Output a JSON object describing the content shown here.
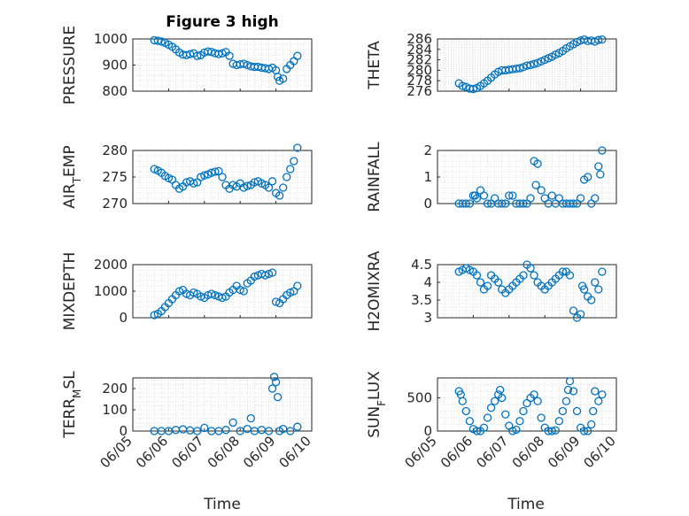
{
  "figure": {
    "title": "Figure 3 high",
    "xlabel": "Time"
  },
  "chart_data": [
    {
      "type": "scatter",
      "title": "Figure 3 high",
      "ylabel": "PRESSURE",
      "ylim": [
        800,
        1000
      ],
      "yticks": [
        800,
        900,
        1000
      ],
      "xlim": [
        0,
        5
      ],
      "grid": true,
      "x": [
        0.6,
        0.7,
        0.8,
        0.9,
        1.0,
        1.1,
        1.2,
        1.3,
        1.4,
        1.5,
        1.6,
        1.7,
        1.8,
        1.9,
        2.0,
        2.1,
        2.2,
        2.3,
        2.4,
        2.5,
        2.6,
        2.7,
        2.8,
        2.9,
        3.0,
        3.1,
        3.2,
        3.3,
        3.4,
        3.5,
        3.6,
        3.7,
        3.8,
        3.9,
        4.0,
        4.05,
        4.1,
        4.2,
        4.3,
        4.4,
        4.5,
        4.6
      ],
      "y": [
        995,
        993,
        990,
        985,
        978,
        970,
        960,
        948,
        940,
        938,
        942,
        945,
        935,
        938,
        948,
        952,
        950,
        945,
        942,
        945,
        950,
        935,
        905,
        900,
        903,
        905,
        900,
        895,
        893,
        893,
        890,
        888,
        885,
        890,
        880,
        855,
        840,
        848,
        885,
        900,
        915,
        935
      ]
    },
    {
      "type": "scatter",
      "ylabel": "THETA",
      "ylim": [
        276,
        286
      ],
      "yticks": [
        276,
        278,
        280,
        282,
        284,
        286
      ],
      "xlim": [
        0,
        5
      ],
      "grid": true,
      "x": [
        0.6,
        0.7,
        0.8,
        0.9,
        1.0,
        1.1,
        1.2,
        1.3,
        1.4,
        1.5,
        1.6,
        1.7,
        1.8,
        1.9,
        2.0,
        2.1,
        2.2,
        2.3,
        2.4,
        2.5,
        2.6,
        2.7,
        2.8,
        2.9,
        3.0,
        3.1,
        3.2,
        3.3,
        3.4,
        3.5,
        3.6,
        3.7,
        3.8,
        3.9,
        4.0,
        4.1,
        4.2,
        4.3,
        4.4,
        4.5,
        4.6
      ],
      "y": [
        277.5,
        277.0,
        276.8,
        276.5,
        276.4,
        276.6,
        277.0,
        277.5,
        278.0,
        278.6,
        279.2,
        279.7,
        280.0,
        280.0,
        280.1,
        280.2,
        280.3,
        280.4,
        280.6,
        280.9,
        281.0,
        281.2,
        281.4,
        281.7,
        282.0,
        282.3,
        282.6,
        283.0,
        283.3,
        283.7,
        284.2,
        284.6,
        285.0,
        285.4,
        285.7,
        285.9,
        285.6,
        285.7,
        285.5,
        285.8,
        285.9
      ]
    },
    {
      "type": "scatter",
      "ylabel": "AIR_TEMP",
      "ylim": [
        270,
        280
      ],
      "yticks": [
        270,
        275,
        280
      ],
      "xlim": [
        0,
        5
      ],
      "grid": true,
      "x": [
        0.6,
        0.7,
        0.8,
        0.9,
        1.0,
        1.1,
        1.2,
        1.3,
        1.4,
        1.5,
        1.6,
        1.7,
        1.8,
        1.9,
        2.0,
        2.1,
        2.2,
        2.3,
        2.4,
        2.5,
        2.6,
        2.7,
        2.8,
        2.9,
        3.0,
        3.1,
        3.2,
        3.3,
        3.4,
        3.5,
        3.6,
        3.7,
        3.8,
        3.9,
        4.0,
        4.1,
        4.2,
        4.3,
        4.4,
        4.5,
        4.6
      ],
      "y": [
        276.5,
        276.2,
        275.8,
        275.2,
        274.8,
        274.5,
        273.5,
        272.8,
        273.2,
        274.0,
        274.2,
        273.8,
        274.0,
        275.0,
        275.3,
        275.5,
        275.8,
        276.0,
        276.1,
        275.0,
        273.5,
        272.8,
        273.5,
        273.2,
        273.8,
        273.0,
        273.3,
        273.5,
        274.0,
        274.2,
        273.8,
        273.5,
        273.0,
        274.2,
        272.0,
        271.5,
        273.0,
        275.0,
        276.5,
        278.0,
        280.5
      ]
    },
    {
      "type": "scatter",
      "ylabel": "RAINFALL",
      "ylim": [
        0,
        2
      ],
      "yticks": [
        0,
        1,
        2
      ],
      "xlim": [
        0,
        5
      ],
      "grid": true,
      "x": [
        0.6,
        0.7,
        0.8,
        0.9,
        1.0,
        1.05,
        1.1,
        1.2,
        1.3,
        1.4,
        1.5,
        1.6,
        1.7,
        1.8,
        1.9,
        2.0,
        2.1,
        2.2,
        2.3,
        2.4,
        2.5,
        2.6,
        2.7,
        2.75,
        2.8,
        2.9,
        3.0,
        3.1,
        3.2,
        3.3,
        3.4,
        3.5,
        3.6,
        3.7,
        3.8,
        3.9,
        4.0,
        4.1,
        4.2,
        4.3,
        4.4,
        4.5,
        4.55,
        4.6
      ],
      "y": [
        0,
        0,
        0,
        0,
        0.3,
        0.3,
        0.2,
        0.5,
        0.3,
        0,
        0,
        0.2,
        0,
        0,
        0,
        0.3,
        0.3,
        0,
        0,
        0,
        0,
        0.2,
        1.6,
        0.7,
        1.5,
        0.5,
        0.2,
        0,
        0.3,
        0,
        0.2,
        0,
        0,
        0,
        0,
        0,
        0.2,
        0.9,
        1.0,
        0,
        0.2,
        1.4,
        1.1,
        2.0
      ]
    },
    {
      "type": "scatter",
      "ylabel": "MIXDEPTH",
      "ylim": [
        0,
        2000
      ],
      "yticks": [
        0,
        1000,
        2000
      ],
      "xlim": [
        0,
        5
      ],
      "grid": true,
      "x": [
        0.6,
        0.7,
        0.8,
        0.9,
        1.0,
        1.1,
        1.2,
        1.3,
        1.4,
        1.5,
        1.6,
        1.7,
        1.8,
        1.9,
        2.0,
        2.1,
        2.2,
        2.3,
        2.4,
        2.5,
        2.6,
        2.7,
        2.8,
        2.9,
        3.0,
        3.1,
        3.2,
        3.3,
        3.4,
        3.5,
        3.6,
        3.7,
        3.8,
        3.9,
        4.0,
        4.1,
        4.2,
        4.3,
        4.4,
        4.5,
        4.6
      ],
      "y": [
        100,
        150,
        250,
        400,
        550,
        700,
        850,
        1000,
        1050,
        900,
        850,
        950,
        900,
        800,
        750,
        850,
        900,
        850,
        800,
        750,
        800,
        950,
        1050,
        1200,
        1050,
        1000,
        1300,
        1400,
        1550,
        1600,
        1650,
        1600,
        1650,
        1700,
        600,
        550,
        700,
        850,
        950,
        1000,
        1200
      ]
    },
    {
      "type": "scatter",
      "ylabel": "H2OMIXRA",
      "ylim": [
        3,
        4.5
      ],
      "yticks": [
        3,
        3.5,
        4,
        4.5
      ],
      "xlim": [
        0,
        5
      ],
      "grid": true,
      "x": [
        0.6,
        0.7,
        0.8,
        0.9,
        1.0,
        1.1,
        1.2,
        1.3,
        1.4,
        1.5,
        1.6,
        1.7,
        1.8,
        1.9,
        2.0,
        2.1,
        2.2,
        2.3,
        2.4,
        2.5,
        2.6,
        2.7,
        2.8,
        2.9,
        3.0,
        3.1,
        3.2,
        3.3,
        3.4,
        3.5,
        3.6,
        3.7,
        3.8,
        3.9,
        4.0,
        4.05,
        4.1,
        4.2,
        4.3,
        4.4,
        4.5,
        4.6
      ],
      "y": [
        4.3,
        4.35,
        4.4,
        4.35,
        4.3,
        4.2,
        4.0,
        3.8,
        3.9,
        4.2,
        4.1,
        4.0,
        3.8,
        3.7,
        3.8,
        3.9,
        4.0,
        4.1,
        4.2,
        4.5,
        4.4,
        4.2,
        4.0,
        3.9,
        3.8,
        3.9,
        4.0,
        4.1,
        4.2,
        4.3,
        4.3,
        4.2,
        3.2,
        3.0,
        3.1,
        3.9,
        3.8,
        3.6,
        3.5,
        4.0,
        3.8,
        4.3
      ]
    },
    {
      "type": "scatter",
      "ylabel": "TERR_MSL",
      "ylim": [
        0,
        250
      ],
      "yticks": [
        0,
        100,
        200
      ],
      "xlim": [
        0,
        5
      ],
      "xticks": [
        "06/05",
        "06/06",
        "06/07",
        "06/08",
        "06/09",
        "06/10"
      ],
      "grid": true,
      "x": [
        0.6,
        0.8,
        1.0,
        1.2,
        1.4,
        1.6,
        1.8,
        2.0,
        2.2,
        2.4,
        2.6,
        2.8,
        3.0,
        3.2,
        3.3,
        3.4,
        3.6,
        3.8,
        3.9,
        3.95,
        4.0,
        4.05,
        4.1,
        4.2,
        4.4,
        4.6
      ],
      "y": [
        0,
        0,
        0,
        5,
        8,
        3,
        0,
        15,
        0,
        0,
        5,
        40,
        0,
        10,
        60,
        0,
        5,
        0,
        200,
        255,
        230,
        160,
        0,
        10,
        0,
        20
      ]
    },
    {
      "type": "scatter",
      "ylabel": "SUN_FLUX",
      "ylim": [
        0,
        800
      ],
      "yticks": [
        0,
        500
      ],
      "xlim": [
        0,
        5
      ],
      "xticks": [
        "06/05",
        "06/06",
        "06/07",
        "06/08",
        "06/09",
        "06/10"
      ],
      "grid": true,
      "x": [
        0.6,
        0.65,
        0.7,
        0.8,
        0.9,
        1.0,
        1.1,
        1.2,
        1.3,
        1.4,
        1.5,
        1.6,
        1.7,
        1.75,
        1.8,
        1.9,
        2.0,
        2.1,
        2.2,
        2.3,
        2.4,
        2.5,
        2.6,
        2.7,
        2.8,
        2.9,
        3.0,
        3.1,
        3.2,
        3.3,
        3.4,
        3.5,
        3.6,
        3.65,
        3.7,
        3.8,
        3.9,
        4.0,
        4.1,
        4.2,
        4.3,
        4.35,
        4.4,
        4.5,
        4.6
      ],
      "y": [
        600,
        550,
        450,
        300,
        150,
        30,
        0,
        0,
        50,
        200,
        350,
        450,
        550,
        620,
        500,
        250,
        80,
        0,
        20,
        150,
        300,
        420,
        500,
        550,
        450,
        200,
        50,
        0,
        0,
        10,
        150,
        300,
        450,
        620,
        750,
        600,
        300,
        50,
        0,
        0,
        100,
        300,
        600,
        450,
        550
      ]
    }
  ]
}
